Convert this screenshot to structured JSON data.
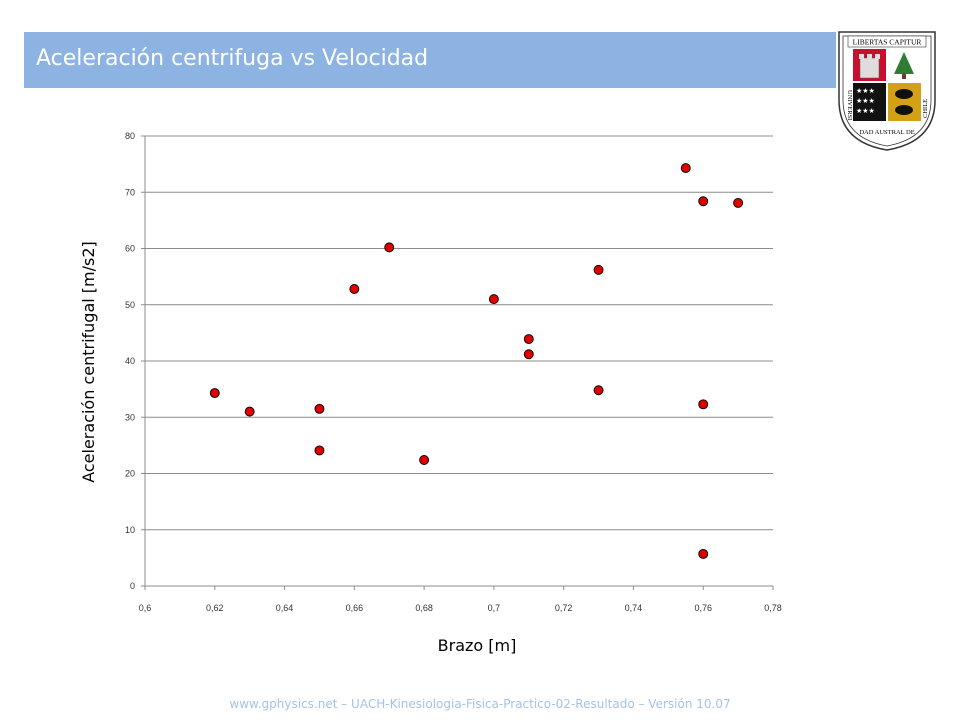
{
  "slide": {
    "title": "Aceleración centrifuga vs Velocidad",
    "footer": "www.gphysics.net – UACH-Kinesiologia-Fisica-Practico-02-Resultado – Versión 10.07",
    "title_bar_color": "#8db3e2"
  },
  "logo": {
    "top_text": "LIBERTAS CAPITUR",
    "side_left": "UNIVERSI",
    "bottom_text": "DAD AUSTRAL DE",
    "side_right": "CHILE"
  },
  "chart_data": {
    "type": "scatter",
    "title": "",
    "xlabel": "Brazo [m]",
    "ylabel": "Aceleración centrifugal [m/s2]",
    "xlim": [
      0.6,
      0.78
    ],
    "ylim": [
      0,
      80
    ],
    "x_ticks": [
      "0,6",
      "0,62",
      "0,64",
      "0,66",
      "0,68",
      "0,7",
      "0,72",
      "0,74",
      "0,76",
      "0,78"
    ],
    "y_ticks": [
      "0",
      "10",
      "20",
      "30",
      "40",
      "50",
      "60",
      "70",
      "80"
    ],
    "grid": "horizontal",
    "legend": "none",
    "marker_color": "#e00000",
    "points": [
      {
        "x": 0.62,
        "y": 34.3
      },
      {
        "x": 0.63,
        "y": 31.0
      },
      {
        "x": 0.65,
        "y": 31.5
      },
      {
        "x": 0.65,
        "y": 24.1
      },
      {
        "x": 0.66,
        "y": 52.8
      },
      {
        "x": 0.67,
        "y": 60.2
      },
      {
        "x": 0.68,
        "y": 22.4
      },
      {
        "x": 0.7,
        "y": 51.0
      },
      {
        "x": 0.71,
        "y": 43.9
      },
      {
        "x": 0.71,
        "y": 41.2
      },
      {
        "x": 0.73,
        "y": 56.2
      },
      {
        "x": 0.73,
        "y": 34.8
      },
      {
        "x": 0.755,
        "y": 74.3
      },
      {
        "x": 0.76,
        "y": 68.4
      },
      {
        "x": 0.76,
        "y": 32.3
      },
      {
        "x": 0.76,
        "y": 5.7
      },
      {
        "x": 0.77,
        "y": 68.1
      }
    ]
  }
}
